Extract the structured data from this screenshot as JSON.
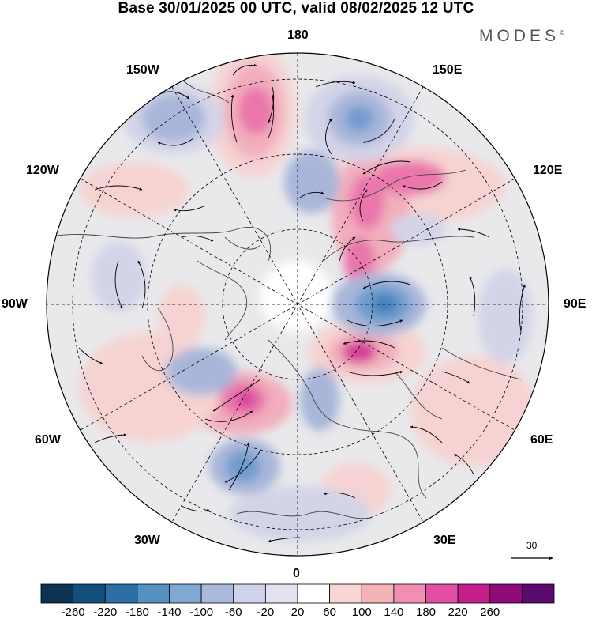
{
  "title": "Base 30/01/2025 00 UTC, valid 08/02/2025 12 UTC",
  "brand": "MODES",
  "brand_mark": "©",
  "lon_labels": {
    "top": "180",
    "bottom": "0",
    "left": "90W",
    "right": "90E",
    "upper_left": "150W",
    "upper_right": "150E",
    "mid_upper_left": "120W",
    "mid_upper_right": "120E",
    "mid_lower_left": "60W",
    "mid_lower_right": "60E",
    "lower_left": "30W",
    "lower_right": "30E"
  },
  "reference_vector": {
    "label": "30"
  },
  "colorbar": {
    "labels": [
      "-260",
      "-220",
      "-180",
      "-140",
      "-100",
      "-60",
      "-20",
      "20",
      "60",
      "100",
      "140",
      "180",
      "220",
      "260"
    ],
    "colors": [
      "#0c3352",
      "#134f7c",
      "#2a6fa6",
      "#5591c1",
      "#7fa9d2",
      "#aab9dc",
      "#cfd3ea",
      "#e4e2f0",
      "#ffffff",
      "#f8d6d4",
      "#f4b3b6",
      "#f08fb3",
      "#e24ea3",
      "#c51d8a",
      "#8e0b79",
      "#5a0a6e"
    ]
  },
  "map": {
    "projection": "north-polar-stereographic",
    "field": "geopotential height anomaly with wind vectors",
    "colors": {
      "neg_weak": "#d3d4e8",
      "neg_mid": "#a9b6da",
      "neg_strong": "#6f9cce",
      "neg_core": "#3f7fb9",
      "pos_weak": "#f6d3d2",
      "pos_mid": "#f2aebc",
      "pos_strong": "#ea76ac",
      "pos_core": "#d53c98",
      "neutral": "#e9e9ec",
      "land_line": "#444444"
    }
  }
}
